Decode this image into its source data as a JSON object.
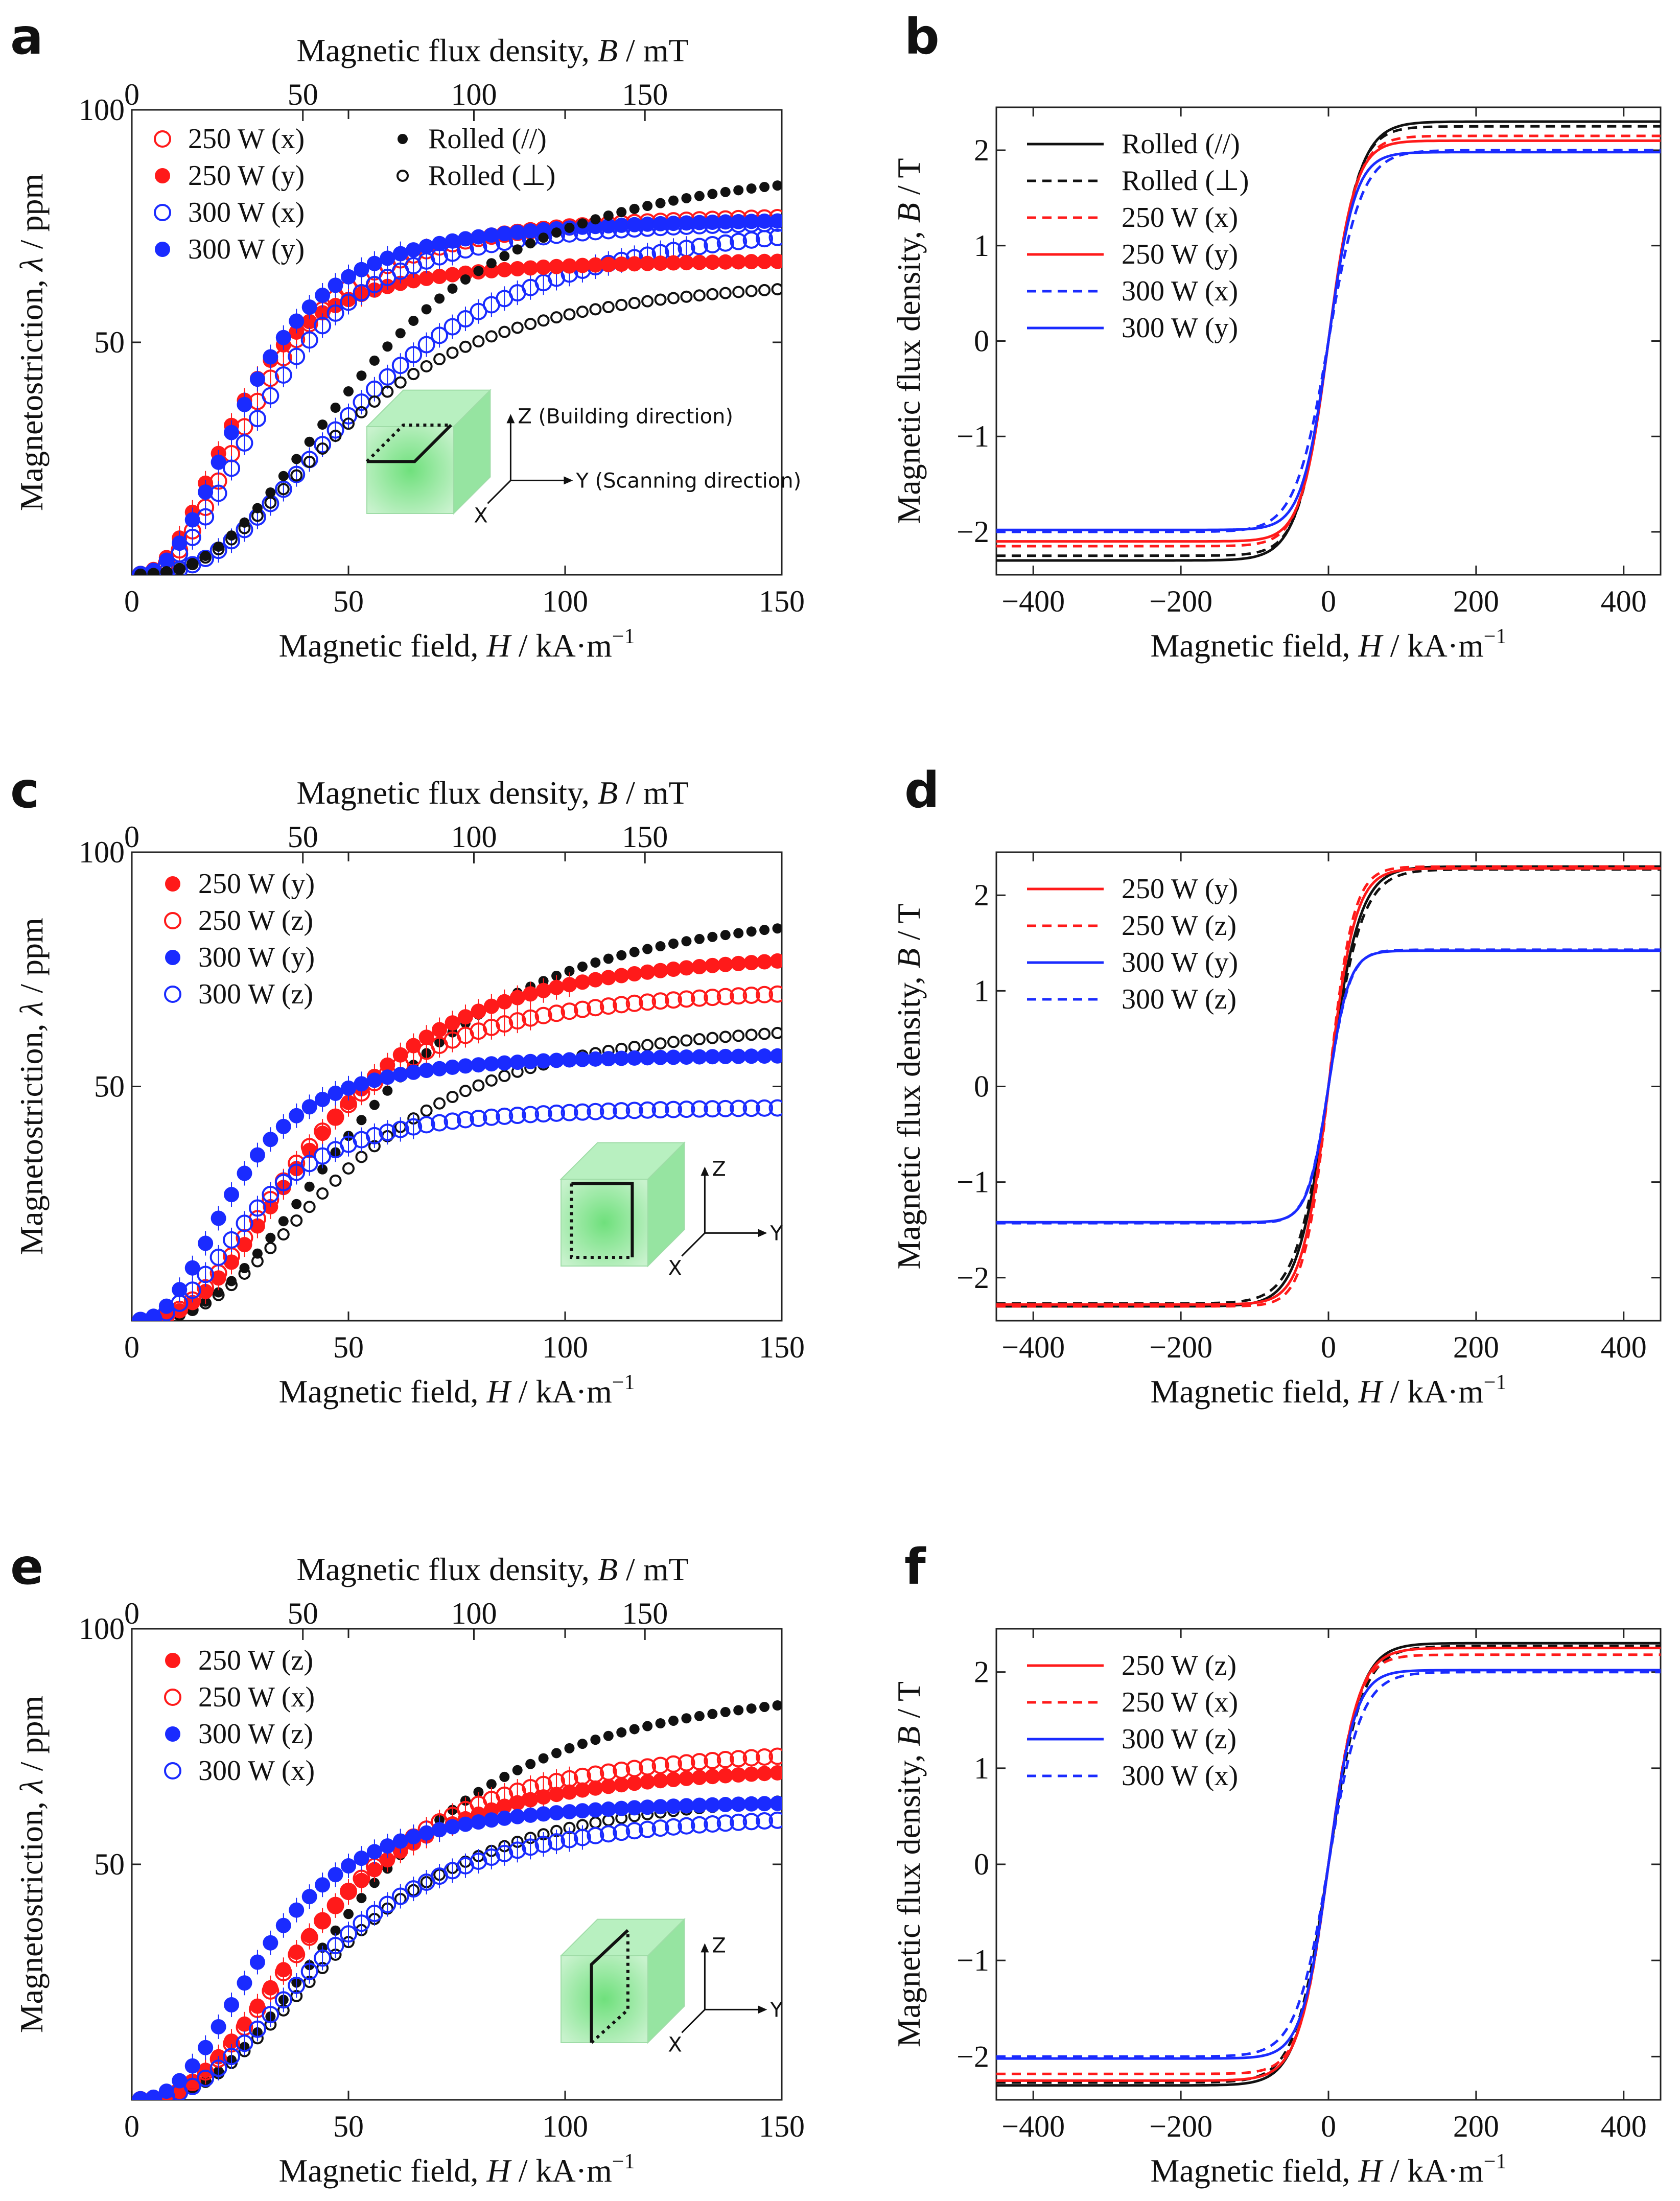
{
  "figure": {
    "colors": {
      "red": "#ff1a1a",
      "blue": "#1a2bff",
      "black": "#111111",
      "inset_green": "#a8ecb0"
    }
  },
  "chart_data": [
    {
      "id": "a",
      "panel_label": "a",
      "type": "scatter",
      "title": "",
      "xlabel": "Magnetic field, H / kA·m⁻¹",
      "xlabel_parts": {
        "pre": "Magnetic field, ",
        "var": "H",
        "post": " / kA·m",
        "sup": "−1"
      },
      "ylabel": "Magnetostriction, λ / ppm",
      "ylabel_parts": {
        "pre": "Magnetostriction, ",
        "var": "λ",
        "post": " / ppm"
      },
      "toplabel": "Magnetic flux density, B / mT",
      "toplabel_parts": {
        "pre": "Magnetic flux density, ",
        "var": "B",
        "post": " / mT"
      },
      "xlim": [
        0,
        150
      ],
      "ylim": [
        0,
        100
      ],
      "xticks": [
        0,
        50,
        100,
        150
      ],
      "yticks": [
        50,
        100
      ],
      "top_ticks": [
        0,
        50,
        100,
        150
      ],
      "legend_position": "top-left",
      "legend_columns": 2,
      "series": [
        {
          "name": "250 W (x)",
          "color": "red",
          "marker": "open",
          "Hs": 30,
          "sat": 78
        },
        {
          "name": "250 W (y)",
          "color": "red",
          "marker": "filled",
          "Hs": 24,
          "sat": 68
        },
        {
          "name": "300 W (x)",
          "color": "blue",
          "marker": "open",
          "Hs": 32,
          "sat": 77
        },
        {
          "name": "300 W (y)",
          "color": "blue",
          "marker": "filled",
          "Hs": 27,
          "sat": 77
        },
        {
          "name": "Rolled (//)",
          "color": "black",
          "marker": "filled-small",
          "Hs": 55,
          "sat": 90
        },
        {
          "name": "Rolled (⊥)",
          "color": "black",
          "marker": "open-small",
          "Hs": 50,
          "sat": 65
        }
      ],
      "extra_series": [
        {
          "name": "300 W (x) slow",
          "color": "blue",
          "marker": "open",
          "Hs": 55,
          "sat": 78,
          "legend": false
        }
      ],
      "inset": {
        "labels": [
          "Z (Building direction)",
          "Y (Scanning direction)",
          "X"
        ],
        "face": "top"
      }
    },
    {
      "id": "b",
      "panel_label": "b",
      "type": "line",
      "xlabel": "Magnetic field, H / kA·m⁻¹",
      "xlabel_parts": {
        "pre": "Magnetic field, ",
        "var": "H",
        "post": " / kA·m",
        "sup": "−1"
      },
      "ylabel": "Magnetic flux density, B / T",
      "ylabel_parts": {
        "pre": "Magnetic flux density, ",
        "var": "B",
        "post": " / T"
      },
      "xlim": [
        -450,
        450
      ],
      "ylim": [
        -2.45,
        2.45
      ],
      "xticks": [
        -400,
        -200,
        0,
        200,
        400
      ],
      "xtick_labels": [
        "−400",
        "−200",
        "0",
        "200",
        "400"
      ],
      "yticks": [
        -2,
        -1,
        0,
        1,
        2
      ],
      "ytick_labels": [
        "−2",
        "−1",
        "0",
        "1",
        "2"
      ],
      "legend_position": "top-left",
      "series": [
        {
          "name": "Rolled (//)",
          "color": "black",
          "dash": "solid",
          "Bs": 2.3,
          "H0": 42
        },
        {
          "name": "Rolled (⊥)",
          "color": "black",
          "dash": "dashed",
          "Bs": 2.25,
          "H0": 40
        },
        {
          "name": "250 W (x)",
          "color": "red",
          "dash": "dashed",
          "Bs": 2.15,
          "H0": 38
        },
        {
          "name": "250 W (y)",
          "color": "red",
          "dash": "solid",
          "Bs": 2.1,
          "H0": 36
        },
        {
          "name": "300 W (x)",
          "color": "blue",
          "dash": "dashed",
          "Bs": 2.0,
          "H0": 45
        },
        {
          "name": "300 W (y)",
          "color": "blue",
          "dash": "solid",
          "Bs": 1.98,
          "H0": 36
        }
      ]
    },
    {
      "id": "c",
      "panel_label": "c",
      "type": "scatter",
      "xlabel": "Magnetic field, H / kA·m⁻¹",
      "xlabel_parts": {
        "pre": "Magnetic field, ",
        "var": "H",
        "post": " / kA·m",
        "sup": "−1"
      },
      "ylabel": "Magnetostriction, λ / ppm",
      "ylabel_parts": {
        "pre": "Magnetostriction, ",
        "var": "λ",
        "post": " / ppm"
      },
      "toplabel": "Magnetic flux density, B / mT",
      "toplabel_parts": {
        "pre": "Magnetic flux density, ",
        "var": "B",
        "post": " / mT"
      },
      "xlim": [
        0,
        150
      ],
      "ylim": [
        0,
        100
      ],
      "xticks": [
        0,
        50,
        100,
        150
      ],
      "yticks": [
        50,
        100
      ],
      "top_ticks": [
        0,
        50,
        100,
        150
      ],
      "legend_position": "top-left",
      "legend_columns": 1,
      "series": [
        {
          "name": "250 W (y)",
          "color": "red",
          "marker": "filled",
          "Hs": 44,
          "sat": 80
        },
        {
          "name": "250 W (z)",
          "color": "red",
          "marker": "open",
          "Hs": 40,
          "sat": 72
        },
        {
          "name": "300 W (y)",
          "color": "blue",
          "marker": "filled",
          "Hs": 24,
          "sat": 57
        },
        {
          "name": "300 W (z)",
          "color": "blue",
          "marker": "open",
          "Hs": 28,
          "sat": 46
        }
      ],
      "extra_series": [
        {
          "name": "Rolled (//)",
          "color": "black",
          "marker": "filled-small",
          "Hs": 55,
          "sat": 90,
          "legend": false
        },
        {
          "name": "Rolled (⊥)",
          "color": "black",
          "marker": "open-small",
          "Hs": 50,
          "sat": 65,
          "legend": false
        }
      ],
      "inset": {
        "labels": [
          "Z",
          "Y",
          "X"
        ],
        "face": "front"
      }
    },
    {
      "id": "d",
      "panel_label": "d",
      "type": "line",
      "xlabel": "Magnetic field, H / kA·m⁻¹",
      "xlabel_parts": {
        "pre": "Magnetic field, ",
        "var": "H",
        "post": " / kA·m",
        "sup": "−1"
      },
      "ylabel": "Magnetic flux density, B / T",
      "ylabel_parts": {
        "pre": "Magnetic flux density, ",
        "var": "B",
        "post": " / T"
      },
      "xlim": [
        -450,
        450
      ],
      "ylim": [
        -2.45,
        2.45
      ],
      "xticks": [
        -400,
        -200,
        0,
        200,
        400
      ],
      "xtick_labels": [
        "−400",
        "−200",
        "0",
        "200",
        "400"
      ],
      "yticks": [
        -2,
        -1,
        0,
        1,
        2
      ],
      "ytick_labels": [
        "−2",
        "−1",
        "0",
        "1",
        "2"
      ],
      "legend_position": "top-left",
      "series": [
        {
          "name": "250 W (y)",
          "color": "red",
          "dash": "solid",
          "Bs": 2.28,
          "H0": 36
        },
        {
          "name": "250 W (z)",
          "color": "red",
          "dash": "dashed",
          "Bs": 2.3,
          "H0": 33
        },
        {
          "name": "300 W (y)",
          "color": "blue",
          "dash": "solid",
          "Bs": 1.42,
          "H0": 28
        },
        {
          "name": "300 W (z)",
          "color": "blue",
          "dash": "dashed",
          "Bs": 1.43,
          "H0": 29
        }
      ],
      "extra_series": [
        {
          "name": "Rolled (//)",
          "color": "black",
          "dash": "solid",
          "Bs": 2.3,
          "H0": 42,
          "legend": false
        },
        {
          "name": "Rolled (⊥)",
          "color": "black",
          "dash": "dashed",
          "Bs": 2.27,
          "H0": 45,
          "legend": false
        }
      ]
    },
    {
      "id": "e",
      "panel_label": "e",
      "type": "scatter",
      "xlabel": "Magnetic field, H / kA·m⁻¹",
      "xlabel_parts": {
        "pre": "Magnetic field, ",
        "var": "H",
        "post": " / kA·m",
        "sup": "−1"
      },
      "ylabel": "Magnetostriction, λ / ppm",
      "ylabel_parts": {
        "pre": "Magnetostriction, ",
        "var": "λ",
        "post": " / ppm"
      },
      "toplabel": "Magnetic flux density, B / mT",
      "toplabel_parts": {
        "pre": "Magnetic flux density, ",
        "var": "B",
        "post": " / mT"
      },
      "xlim": [
        0,
        150
      ],
      "ylim": [
        0,
        100
      ],
      "xticks": [
        0,
        50,
        100,
        150
      ],
      "yticks": [
        50,
        100
      ],
      "top_ticks": [
        0,
        50,
        100,
        150
      ],
      "legend_position": "top-left",
      "legend_columns": 1,
      "series": [
        {
          "name": "250 W (z)",
          "color": "red",
          "marker": "filled",
          "Hs": 42,
          "sat": 72
        },
        {
          "name": "250 W (x)",
          "color": "red",
          "marker": "open",
          "Hs": 44,
          "sat": 76
        },
        {
          "name": "300 W (z)",
          "color": "blue",
          "marker": "filled",
          "Hs": 31,
          "sat": 64
        },
        {
          "name": "300 W (x)",
          "color": "blue",
          "marker": "open",
          "Hs": 45,
          "sat": 62
        }
      ],
      "extra_series": [
        {
          "name": "Rolled (//)",
          "color": "black",
          "marker": "filled-small",
          "Hs": 55,
          "sat": 90,
          "legend": false
        },
        {
          "name": "Rolled (⊥)",
          "color": "black",
          "marker": "open-small",
          "Hs": 50,
          "sat": 67,
          "legend": false
        }
      ],
      "inset": {
        "labels": [
          "Z",
          "Y",
          "X"
        ],
        "face": "side"
      }
    },
    {
      "id": "f",
      "panel_label": "f",
      "type": "line",
      "xlabel": "Magnetic field, H / kA·m⁻¹",
      "xlabel_parts": {
        "pre": "Magnetic field, ",
        "var": "H",
        "post": " / kA·m",
        "sup": "−1"
      },
      "ylabel": "Magnetic flux density, B / T",
      "ylabel_parts": {
        "pre": "Magnetic flux density, ",
        "var": "B",
        "post": " / T"
      },
      "xlim": [
        -450,
        450
      ],
      "ylim": [
        -2.45,
        2.45
      ],
      "xticks": [
        -400,
        -200,
        0,
        200,
        400
      ],
      "xtick_labels": [
        "−400",
        "−200",
        "0",
        "200",
        "400"
      ],
      "yticks": [
        -2,
        -1,
        0,
        1,
        2
      ],
      "ytick_labels": [
        "−2",
        "−1",
        "0",
        "1",
        "2"
      ],
      "legend_position": "top-left",
      "series": [
        {
          "name": "250 W (z)",
          "color": "red",
          "dash": "solid",
          "Bs": 2.25,
          "H0": 40
        },
        {
          "name": "250 W (x)",
          "color": "red",
          "dash": "dashed",
          "Bs": 2.18,
          "H0": 38
        },
        {
          "name": "300 W (z)",
          "color": "blue",
          "dash": "solid",
          "Bs": 2.02,
          "H0": 36
        },
        {
          "name": "300 W (x)",
          "color": "blue",
          "dash": "dashed",
          "Bs": 2.0,
          "H0": 44
        }
      ],
      "extra_series": [
        {
          "name": "Rolled (//)",
          "color": "black",
          "dash": "solid",
          "Bs": 2.3,
          "H0": 42,
          "legend": false
        },
        {
          "name": "Rolled (⊥)",
          "color": "black",
          "dash": "dashed",
          "Bs": 2.27,
          "H0": 45,
          "legend": false
        }
      ]
    }
  ]
}
